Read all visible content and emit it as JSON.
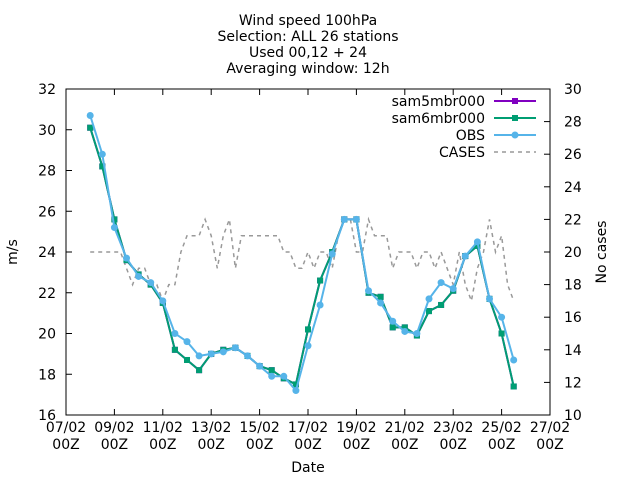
{
  "chart_data": {
    "type": "line",
    "title_lines": [
      "Wind speed 100hPa",
      "Selection: ALL     26 stations",
      "Used 00,12 + 24",
      "Averaging window: 12h"
    ],
    "xlabel": "Date",
    "ylabel": "m/s",
    "y2label": "No cases",
    "xlim": [
      0,
      20
    ],
    "ylim": [
      16,
      32
    ],
    "y2lim": [
      10,
      30
    ],
    "grid": false,
    "legend_position": "top-right",
    "x_ticks": [
      {
        "x": 0,
        "line1": "07/02",
        "line2": "00Z"
      },
      {
        "x": 2,
        "line1": "09/02",
        "line2": "00Z"
      },
      {
        "x": 4,
        "line1": "11/02",
        "line2": "00Z"
      },
      {
        "x": 6,
        "line1": "13/02",
        "line2": "00Z"
      },
      {
        "x": 8,
        "line1": "15/02",
        "line2": "00Z"
      },
      {
        "x": 10,
        "line1": "17/02",
        "line2": "00Z"
      },
      {
        "x": 12,
        "line1": "19/02",
        "line2": "00Z"
      },
      {
        "x": 14,
        "line1": "21/02",
        "line2": "00Z"
      },
      {
        "x": 16,
        "line1": "23/02",
        "line2": "00Z"
      },
      {
        "x": 18,
        "line1": "25/02",
        "line2": "00Z"
      },
      {
        "x": 20,
        "line1": "27/02",
        "line2": "00Z"
      }
    ],
    "y_ticks": [
      16,
      18,
      20,
      22,
      24,
      26,
      28,
      30,
      32
    ],
    "y2_ticks": [
      10,
      12,
      14,
      16,
      18,
      20,
      22,
      24,
      26,
      28,
      30
    ],
    "x": [
      1.0,
      1.5,
      2.0,
      2.5,
      3.0,
      3.5,
      4.0,
      4.5,
      5.0,
      5.5,
      6.0,
      6.5,
      7.0,
      7.5,
      8.0,
      8.5,
      9.0,
      9.5,
      10.0,
      10.5,
      11.0,
      11.5,
      12.0,
      12.5,
      13.0,
      13.5,
      14.0,
      14.5,
      15.0,
      15.5,
      16.0,
      16.5,
      17.0,
      17.5,
      18.0,
      18.5
    ],
    "series": [
      {
        "name": "sam5mbr000",
        "color": "#8000c0",
        "axis": "y",
        "marker": "square",
        "values": [
          30.1,
          28.2,
          25.6,
          23.6,
          22.9,
          22.4,
          21.5,
          19.2,
          18.7,
          18.2,
          19.0,
          19.2,
          19.3,
          18.9,
          18.4,
          18.2,
          17.8,
          17.5,
          20.2,
          22.6,
          24.0,
          25.6,
          25.6,
          22.0,
          21.8,
          20.3,
          20.3,
          19.9,
          21.1,
          21.4,
          22.1,
          23.8,
          24.3,
          21.7,
          20.0,
          17.4
        ]
      },
      {
        "name": "sam6mbr000",
        "color": "#009e73",
        "axis": "y",
        "marker": "square",
        "values": [
          30.1,
          28.2,
          25.6,
          23.6,
          22.9,
          22.4,
          21.5,
          19.2,
          18.7,
          18.2,
          19.0,
          19.2,
          19.3,
          18.9,
          18.4,
          18.2,
          17.8,
          17.5,
          20.2,
          22.6,
          24.0,
          25.6,
          25.6,
          22.0,
          21.8,
          20.3,
          20.3,
          19.9,
          21.1,
          21.4,
          22.1,
          23.8,
          24.3,
          21.7,
          20.0,
          17.4
        ]
      },
      {
        "name": "OBS",
        "color": "#56b4e9",
        "axis": "y",
        "marker": "circle",
        "values": [
          30.7,
          28.8,
          25.2,
          23.7,
          22.8,
          22.5,
          21.6,
          20.0,
          19.6,
          18.9,
          19.0,
          19.1,
          19.3,
          18.9,
          18.4,
          17.9,
          17.9,
          17.2,
          19.4,
          21.4,
          23.9,
          25.6,
          25.6,
          22.1,
          21.5,
          20.6,
          20.1,
          20.0,
          21.7,
          22.5,
          22.2,
          23.8,
          24.5,
          21.7,
          20.8,
          18.7
        ]
      },
      {
        "name": "CASES",
        "color": "#999999",
        "axis": "y2",
        "dashed": true,
        "points": [
          [
            1.0,
            20
          ],
          [
            1.25,
            20
          ],
          [
            1.5,
            20
          ],
          [
            1.75,
            20
          ],
          [
            2.0,
            20
          ],
          [
            2.25,
            20
          ],
          [
            2.5,
            19
          ],
          [
            2.75,
            18
          ],
          [
            3.0,
            19
          ],
          [
            3.25,
            19
          ],
          [
            3.5,
            18
          ],
          [
            3.75,
            18
          ],
          [
            4.0,
            17
          ],
          [
            4.25,
            18
          ],
          [
            4.5,
            18
          ],
          [
            4.75,
            20
          ],
          [
            5.0,
            21
          ],
          [
            5.25,
            21
          ],
          [
            5.5,
            21
          ],
          [
            5.75,
            22
          ],
          [
            6.0,
            21
          ],
          [
            6.25,
            19
          ],
          [
            6.5,
            21
          ],
          [
            6.75,
            22
          ],
          [
            7.0,
            19
          ],
          [
            7.25,
            21
          ],
          [
            7.5,
            21
          ],
          [
            7.75,
            21
          ],
          [
            8.0,
            21
          ],
          [
            8.25,
            21
          ],
          [
            8.5,
            21
          ],
          [
            8.75,
            21
          ],
          [
            9.0,
            20
          ],
          [
            9.25,
            20
          ],
          [
            9.5,
            19
          ],
          [
            9.75,
            19
          ],
          [
            10.0,
            20
          ],
          [
            10.25,
            19
          ],
          [
            10.5,
            20
          ],
          [
            10.75,
            20
          ],
          [
            11.0,
            19
          ],
          [
            11.25,
            21
          ],
          [
            11.5,
            22
          ],
          [
            11.75,
            22
          ],
          [
            12.0,
            20
          ],
          [
            12.25,
            20
          ],
          [
            12.5,
            22
          ],
          [
            12.75,
            21
          ],
          [
            13.0,
            21
          ],
          [
            13.25,
            21
          ],
          [
            13.5,
            19
          ],
          [
            13.75,
            20
          ],
          [
            14.0,
            20
          ],
          [
            14.25,
            20
          ],
          [
            14.5,
            19
          ],
          [
            14.75,
            20
          ],
          [
            15.0,
            20
          ],
          [
            15.25,
            19
          ],
          [
            15.5,
            20
          ],
          [
            15.75,
            19
          ],
          [
            16.0,
            18
          ],
          [
            16.25,
            20
          ],
          [
            16.5,
            18
          ],
          [
            16.75,
            17
          ],
          [
            17.0,
            19
          ],
          [
            17.25,
            20
          ],
          [
            17.5,
            22
          ],
          [
            17.75,
            20
          ],
          [
            18.0,
            21
          ],
          [
            18.25,
            18
          ],
          [
            18.5,
            17
          ]
        ]
      }
    ]
  }
}
